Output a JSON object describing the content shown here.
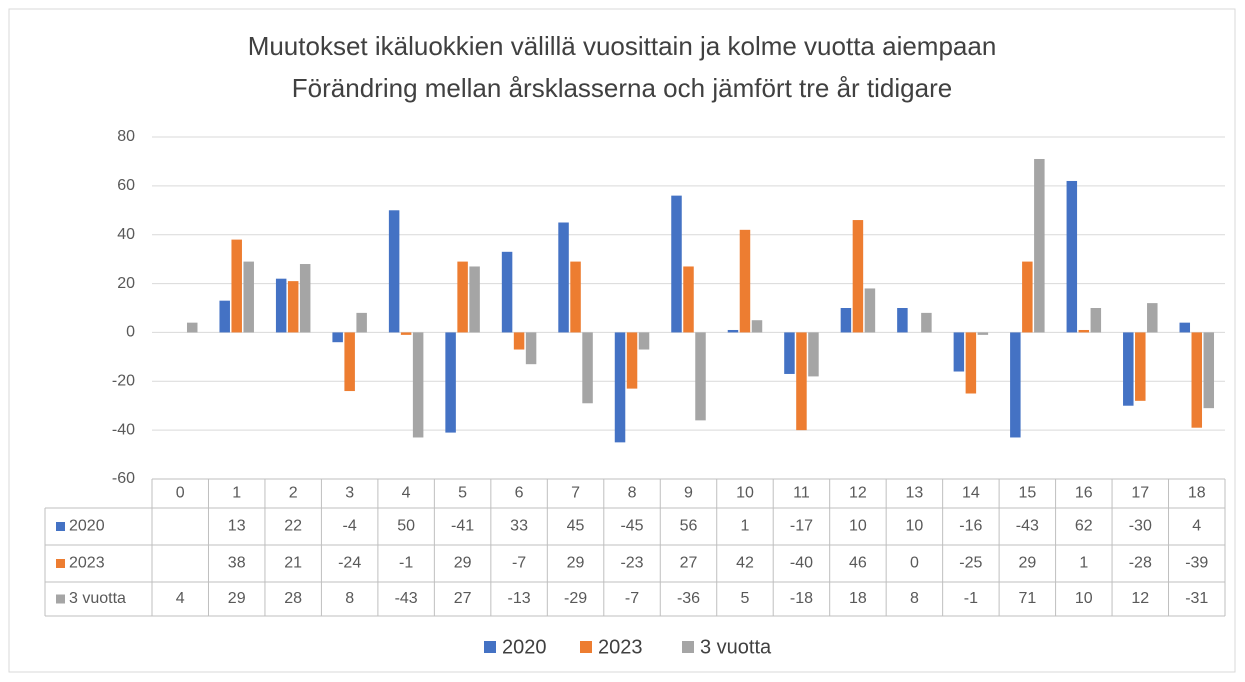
{
  "chart_data": {
    "type": "bar",
    "title": "Muutokset ikäluokkien välillä vuosittain ja kolme vuotta aiempaan",
    "subtitle": "Förändring mellan årsklasserna och jämfört tre år tidigare",
    "categories": [
      "0",
      "1",
      "2",
      "3",
      "4",
      "5",
      "6",
      "7",
      "8",
      "9",
      "10",
      "11",
      "12",
      "13",
      "14",
      "15",
      "16",
      "17",
      "18"
    ],
    "series": [
      {
        "name": "2020",
        "color": "#4472c4",
        "values": [
          null,
          13,
          22,
          -4,
          50,
          -41,
          33,
          45,
          -45,
          56,
          1,
          -17,
          10,
          10,
          -16,
          -43,
          62,
          -30,
          4
        ]
      },
      {
        "name": "2023",
        "color": "#ed7d31",
        "values": [
          null,
          38,
          21,
          -24,
          -1,
          29,
          -7,
          29,
          -23,
          27,
          42,
          -40,
          46,
          0,
          -25,
          29,
          1,
          -28,
          -39
        ]
      },
      {
        "name": "3 vuotta",
        "color": "#a5a5a5",
        "values": [
          4,
          29,
          28,
          8,
          -43,
          27,
          -13,
          -29,
          -7,
          -36,
          5,
          -18,
          18,
          8,
          -1,
          71,
          10,
          12,
          -31
        ]
      }
    ],
    "ylim": [
      -60,
      80
    ],
    "yticks": [
      -60,
      -40,
      -20,
      0,
      20,
      40,
      60,
      80
    ],
    "grid": true,
    "legend": "bottom",
    "data_table": true
  }
}
